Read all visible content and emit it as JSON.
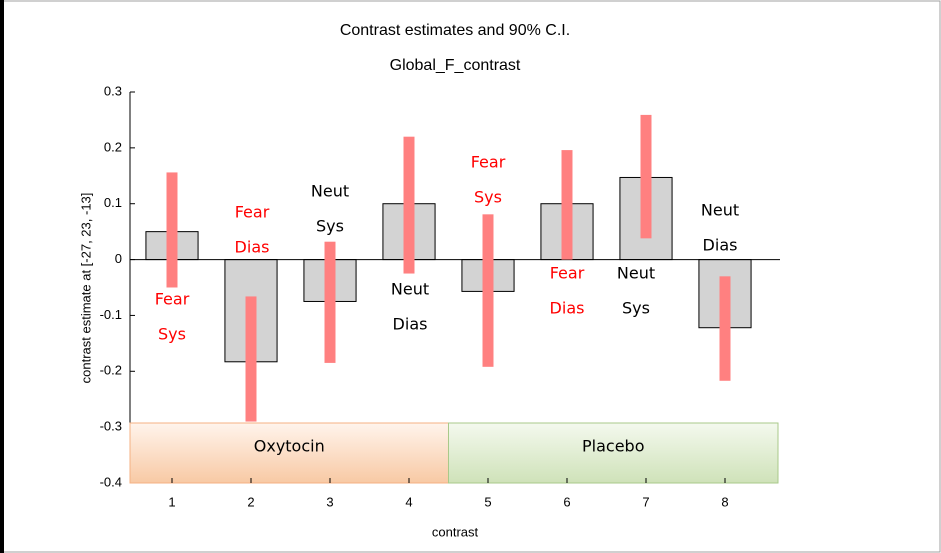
{
  "chart_data": {
    "type": "bar",
    "title": "Contrast estimates and 90% C.I.",
    "subtitle": "Global_F_contrast",
    "y_label": "contrast estimate at [-27, 23, -13]",
    "x_label": "contrast",
    "categories": [
      "1",
      "2",
      "3",
      "4",
      "5",
      "6",
      "7",
      "8"
    ],
    "values": [
      0.05,
      -0.183,
      -0.075,
      0.1,
      -0.057,
      0.1,
      0.147,
      -0.122
    ],
    "ci_low": [
      -0.05,
      -0.29,
      -0.185,
      -0.025,
      -0.192,
      0.0,
      0.038,
      -0.217
    ],
    "ci_high": [
      0.156,
      -0.066,
      0.032,
      0.22,
      0.081,
      0.196,
      0.259,
      -0.03
    ],
    "color": "#d3d3d3",
    "ci_color": "#ff8080",
    "ylim": [
      -0.4,
      0.3
    ],
    "yticks": [
      0.3,
      0.2,
      0.1,
      0,
      -0.1,
      -0.2,
      -0.3,
      -0.4
    ],
    "groups": [
      {
        "label": "Oxytocin"
      },
      {
        "label": "Placebo"
      }
    ],
    "annotations": [
      {
        "lines": [
          "Fear",
          "Sys"
        ],
        "color": "#ff0000"
      },
      {
        "lines": [
          "Fear",
          "Dias"
        ],
        "color": "#ff0000"
      },
      {
        "lines": [
          "Neut",
          "Sys"
        ],
        "color": "#000000"
      },
      {
        "lines": [
          "Neut",
          "Dias"
        ],
        "color": "#000000"
      },
      {
        "lines": [
          "Fear",
          "Sys"
        ],
        "color": "#ff0000"
      },
      {
        "lines": [
          "Fear",
          "Dias"
        ],
        "color": "#ff0000"
      },
      {
        "lines": [
          "Neut",
          "Sys"
        ],
        "color": "#000000"
      },
      {
        "lines": [
          "Neut",
          "Dias"
        ],
        "color": "#000000"
      }
    ]
  }
}
